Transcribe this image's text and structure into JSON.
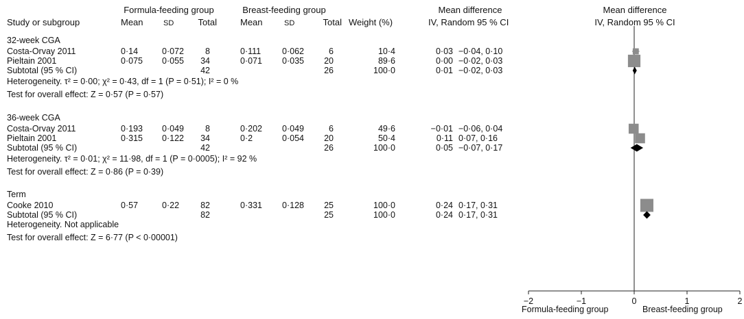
{
  "header": {
    "formula_group": "Formula-feeding group",
    "breast_group": "Breast-feeding group",
    "mean_difference": "Mean difference",
    "study_col": "Study or subgroup",
    "mean": "Mean",
    "sd": "SD",
    "total": "Total",
    "weight": "Weight (%)",
    "iv_random": "IV, Random 95 % CI"
  },
  "subgroups": [
    {
      "name": "32-week CGA",
      "studies": [
        {
          "study": "Costa-Orvay 2011",
          "f_mean": "0·14",
          "f_sd": "0·072",
          "f_total": "8",
          "b_mean": "0·111",
          "b_sd": "0·062",
          "b_total": "6",
          "weight": "10·4",
          "md": "0·03",
          "ci": "−0·04, 0·10"
        },
        {
          "study": "Pieltain 2001",
          "f_mean": "0·075",
          "f_sd": "0·055",
          "f_total": "34",
          "b_mean": "0·071",
          "b_sd": "0·035",
          "b_total": "20",
          "weight": "89·6",
          "md": "0·00",
          "ci": "−0·02, 0·03"
        }
      ],
      "subtotal": {
        "label": "Subtotal (95 % CI)",
        "f_total": "42",
        "b_total": "26",
        "weight": "100·0",
        "md": "0·01",
        "ci": "−0·02, 0·03"
      },
      "heterogeneity": "Heterogeneity. τ² = 0·00; χ² = 0·43, df = 1 (P = 0·51); I² = 0 %",
      "overall": "Test for overall effect: Z = 0·57 (P = 0·57)"
    },
    {
      "name": "36-week CGA",
      "studies": [
        {
          "study": "Costa-Orvay 2011",
          "f_mean": "0·193",
          "f_sd": "0·049",
          "f_total": "8",
          "b_mean": "0·202",
          "b_sd": "0·049",
          "b_total": "6",
          "weight": "49·6",
          "md": "−0·01",
          "ci": "−0·06, 0·04"
        },
        {
          "study": "Pieltain 2001",
          "f_mean": "0·315",
          "f_sd": "0·122",
          "f_total": "34",
          "b_mean": "0·2",
          "b_sd": "0·054",
          "b_total": "20",
          "weight": "50·4",
          "md": "0·11",
          "ci": "0·07, 0·16"
        }
      ],
      "subtotal": {
        "label": "Subtotal (95 % CI)",
        "f_total": "42",
        "b_total": "26",
        "weight": "100·0",
        "md": "0·05",
        "ci": "−0·07, 0·17"
      },
      "heterogeneity": "Heterogeneity. τ² = 0·01; χ² = 11·98, df = 1 (P = 0·0005); I² = 92 %",
      "overall": "Test for overall effect: Z = 0·86 (P = 0·39)"
    },
    {
      "name": "Term",
      "studies": [
        {
          "study": "Cooke 2010",
          "f_mean": "0·57",
          "f_sd": "0·22",
          "f_total": "82",
          "b_mean": "0·331",
          "b_sd": "0·128",
          "b_total": "25",
          "weight": "100·0",
          "md": "0·24",
          "ci": "0·17, 0·31"
        }
      ],
      "subtotal": {
        "label": "Subtotal (95 % CI)",
        "f_total": "82",
        "b_total": "25",
        "weight": "100·0",
        "md": "0·24",
        "ci": "0·17, 0·31"
      },
      "heterogeneity": "Heterogeneity. Not applicable",
      "overall": "Test for overall effect: Z = 6·77 (P < 0·00001)"
    }
  ],
  "axis": {
    "ticks": [
      "−2",
      "−1",
      "0",
      "1",
      "2"
    ],
    "left_label": "Formula-feeding group",
    "right_label": "Breast-feeding group"
  },
  "colors": {
    "study_marker": "#8c8c8c",
    "subtotal_marker": "#000000",
    "text": "#111111"
  },
  "chart_data": {
    "type": "forest",
    "xlim": [
      -2,
      2
    ],
    "series": [
      {
        "subgroup": "32-week CGA",
        "points": [
          {
            "study": "Costa-Orvay 2011",
            "md": 0.03,
            "lo": -0.04,
            "hi": 0.1,
            "weight": 10.4
          },
          {
            "study": "Pieltain 2001",
            "md": 0.0,
            "lo": -0.02,
            "hi": 0.03,
            "weight": 89.6
          }
        ],
        "subtotal": {
          "md": 0.01,
          "lo": -0.02,
          "hi": 0.03
        }
      },
      {
        "subgroup": "36-week CGA",
        "points": [
          {
            "study": "Costa-Orvay 2011",
            "md": -0.01,
            "lo": -0.06,
            "hi": 0.04,
            "weight": 49.6
          },
          {
            "study": "Pieltain 2001",
            "md": 0.11,
            "lo": 0.07,
            "hi": 0.16,
            "weight": 50.4
          }
        ],
        "subtotal": {
          "md": 0.05,
          "lo": -0.07,
          "hi": 0.17
        }
      },
      {
        "subgroup": "Term",
        "points": [
          {
            "study": "Cooke 2010",
            "md": 0.24,
            "lo": 0.17,
            "hi": 0.31,
            "weight": 100.0
          }
        ],
        "subtotal": {
          "md": 0.24,
          "lo": 0.17,
          "hi": 0.31
        }
      }
    ]
  }
}
